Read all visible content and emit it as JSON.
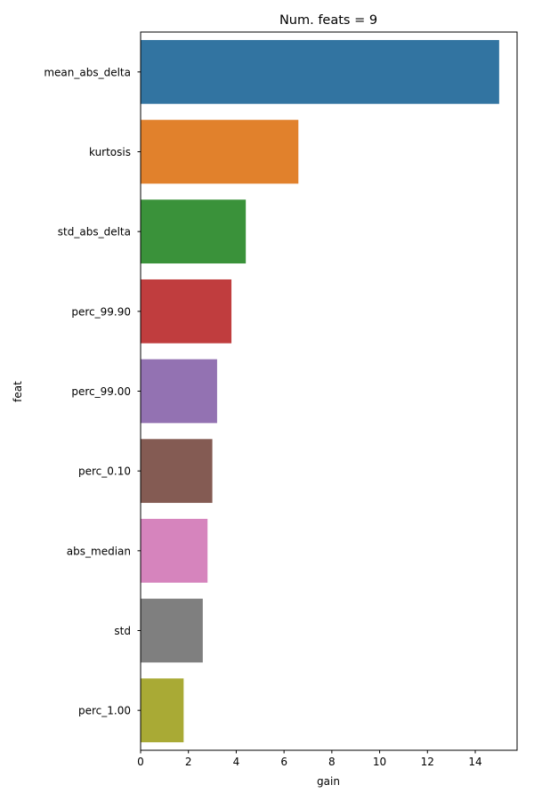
{
  "chart_data": {
    "type": "bar",
    "orientation": "horizontal",
    "title": "Num. feats = 9",
    "xlabel": "gain",
    "ylabel": "feat",
    "xlim": [
      0,
      15.75
    ],
    "xticks": [
      0,
      2,
      4,
      6,
      8,
      10,
      12,
      14
    ],
    "categories": [
      "mean_abs_delta",
      "kurtosis",
      "std_abs_delta",
      "perc_99.90",
      "perc_99.00",
      "perc_0.10",
      "abs_median",
      "std",
      "perc_1.00"
    ],
    "values": [
      15.0,
      6.6,
      4.4,
      3.8,
      3.2,
      3.0,
      2.8,
      2.6,
      1.8
    ],
    "colors": [
      "#3274a1",
      "#e1812c",
      "#3a923a",
      "#c03d3e",
      "#9372b2",
      "#845b53",
      "#d684bd",
      "#7f7f7f",
      "#a9aa35"
    ],
    "grid": false,
    "legend": "none"
  }
}
